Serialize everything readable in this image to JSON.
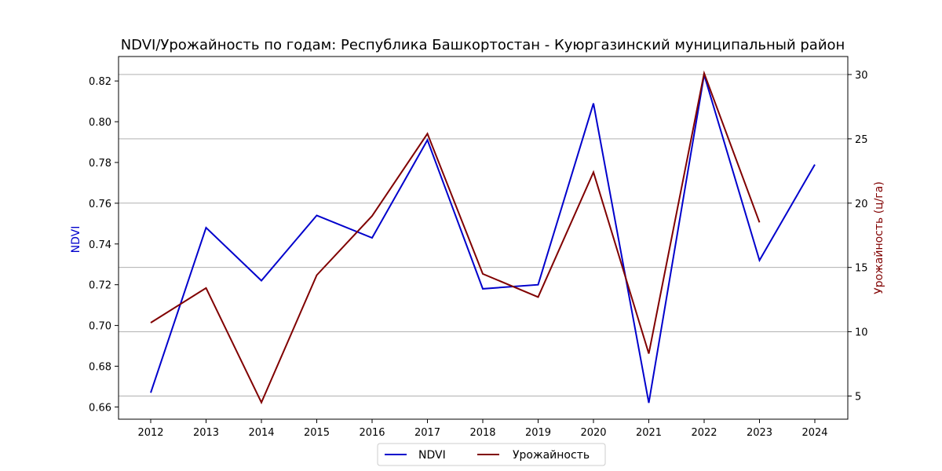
{
  "chart_data": {
    "type": "line",
    "title": "NDVI/Урожайность по годам: Республика Башкортостан - Куюргазинский муниципальный район",
    "xlabel": "",
    "ylabel_left": "NDVI",
    "ylabel_right": "Урожайность (ц/га)",
    "categories": [
      "2012",
      "2013",
      "2014",
      "2015",
      "2016",
      "2017",
      "2018",
      "2019",
      "2020",
      "2021",
      "2022",
      "2023",
      "2024"
    ],
    "ylim_left": [
      0.654,
      0.832
    ],
    "ylim_right": [
      3.2,
      31.4
    ],
    "yticks_left": [
      0.66,
      0.68,
      0.7,
      0.72,
      0.74,
      0.76,
      0.78,
      0.8,
      0.82
    ],
    "yticks_right": [
      5,
      10,
      15,
      20,
      25,
      30
    ],
    "grid": "right-axis horizontal",
    "legend_position": "bottom-center",
    "series": [
      {
        "name": "NDVI",
        "axis": "left",
        "color": "#0000cc",
        "values": [
          0.667,
          0.748,
          0.722,
          0.754,
          0.743,
          0.791,
          0.718,
          0.72,
          0.809,
          0.662,
          0.823,
          0.732,
          0.779
        ]
      },
      {
        "name": "Урожайность",
        "axis": "right",
        "color": "#800000",
        "values": [
          10.7,
          13.4,
          4.5,
          14.4,
          19.0,
          25.4,
          14.5,
          12.7,
          22.4,
          8.3,
          30.1,
          18.5,
          null
        ]
      }
    ]
  }
}
